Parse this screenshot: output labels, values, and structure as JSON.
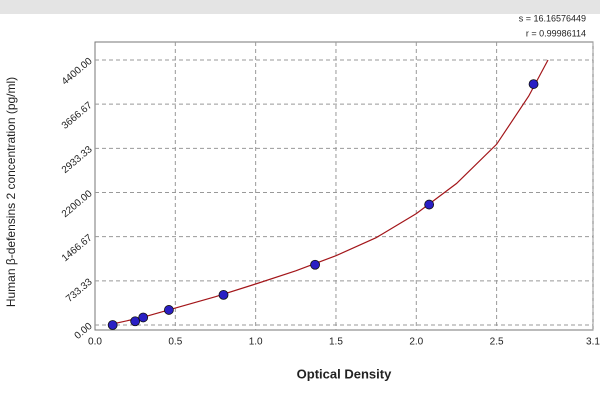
{
  "chart_data": {
    "type": "scatter",
    "xlabel": "Optical Density",
    "ylabel": "Human β-defensins 2 concentration (pg/ml)",
    "annotations": [
      "s = 16.16576449",
      "r = 0.99986114"
    ],
    "xlim": [
      0,
      3.1
    ],
    "xticks": [
      {
        "value": 0,
        "label": "0.0"
      },
      0.5,
      {
        "value": 1,
        "label": "1.0"
      },
      1.5,
      {
        "value": 2,
        "label": "2.0"
      },
      2.5,
      3.1
    ],
    "ylim": [
      0,
      4400
    ],
    "yticks": [
      {
        "value": 0,
        "label": "0.00"
      },
      733.33,
      1466.67,
      {
        "value": 2200,
        "label": "2200.00"
      },
      2933.33,
      3666.67,
      {
        "value": 4400,
        "label": "4400.00"
      }
    ],
    "grid": true,
    "points": {
      "color": "#2a1fc4",
      "x": [
        0.11,
        0.25,
        0.3,
        0.46,
        0.8,
        1.37,
        2.08,
        2.73
      ],
      "y": [
        0,
        62.5,
        125,
        250,
        500,
        1000,
        2000,
        4000
      ]
    },
    "fit": {
      "color": "#a3161a",
      "x": [
        0.08,
        0.3,
        0.5,
        0.75,
        1.0,
        1.25,
        1.5,
        1.75,
        2.0,
        2.25,
        2.5,
        2.7,
        2.82
      ],
      "y": [
        0,
        130,
        280,
        470,
        680,
        900,
        1150,
        1450,
        1850,
        2350,
        3000,
        3800,
        4400
      ]
    }
  }
}
